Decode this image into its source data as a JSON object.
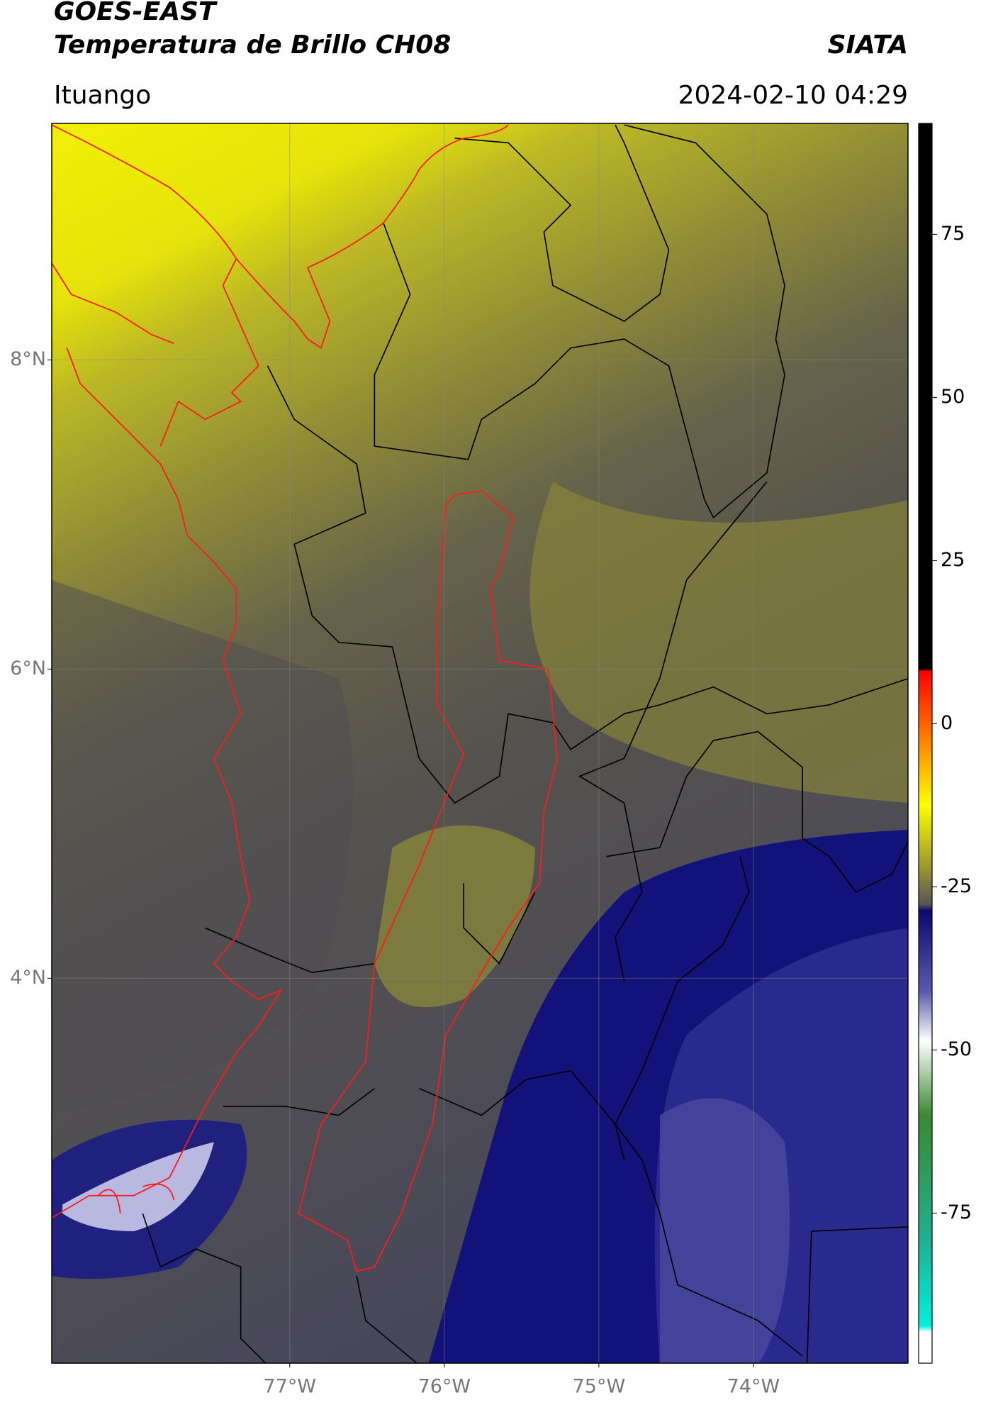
{
  "header": {
    "title": "GOES-EAST",
    "subtitle": "Temperatura de Brillo CH08",
    "source": "SIATA",
    "location": "Ituango",
    "datetime": "2024-02-10 04:29"
  },
  "map": {
    "xlim": [
      -78.54,
      -73.0
    ],
    "ylim": [
      1.51,
      9.53
    ],
    "lat_ticks": [
      {
        "value": 8,
        "label": "8°N"
      },
      {
        "value": 6,
        "label": "6°N"
      },
      {
        "value": 4,
        "label": "4°N"
      }
    ],
    "lon_ticks": [
      {
        "value": -77,
        "label": "77°W"
      },
      {
        "value": -76,
        "label": "76°W"
      },
      {
        "value": -75,
        "label": "75°W"
      },
      {
        "value": -74,
        "label": "74°W"
      }
    ],
    "grid": true
  },
  "colorbar": {
    "lim": [
      -98,
      92
    ],
    "ticks": [
      75,
      50,
      25,
      0,
      -25,
      -50,
      -75
    ]
  }
}
